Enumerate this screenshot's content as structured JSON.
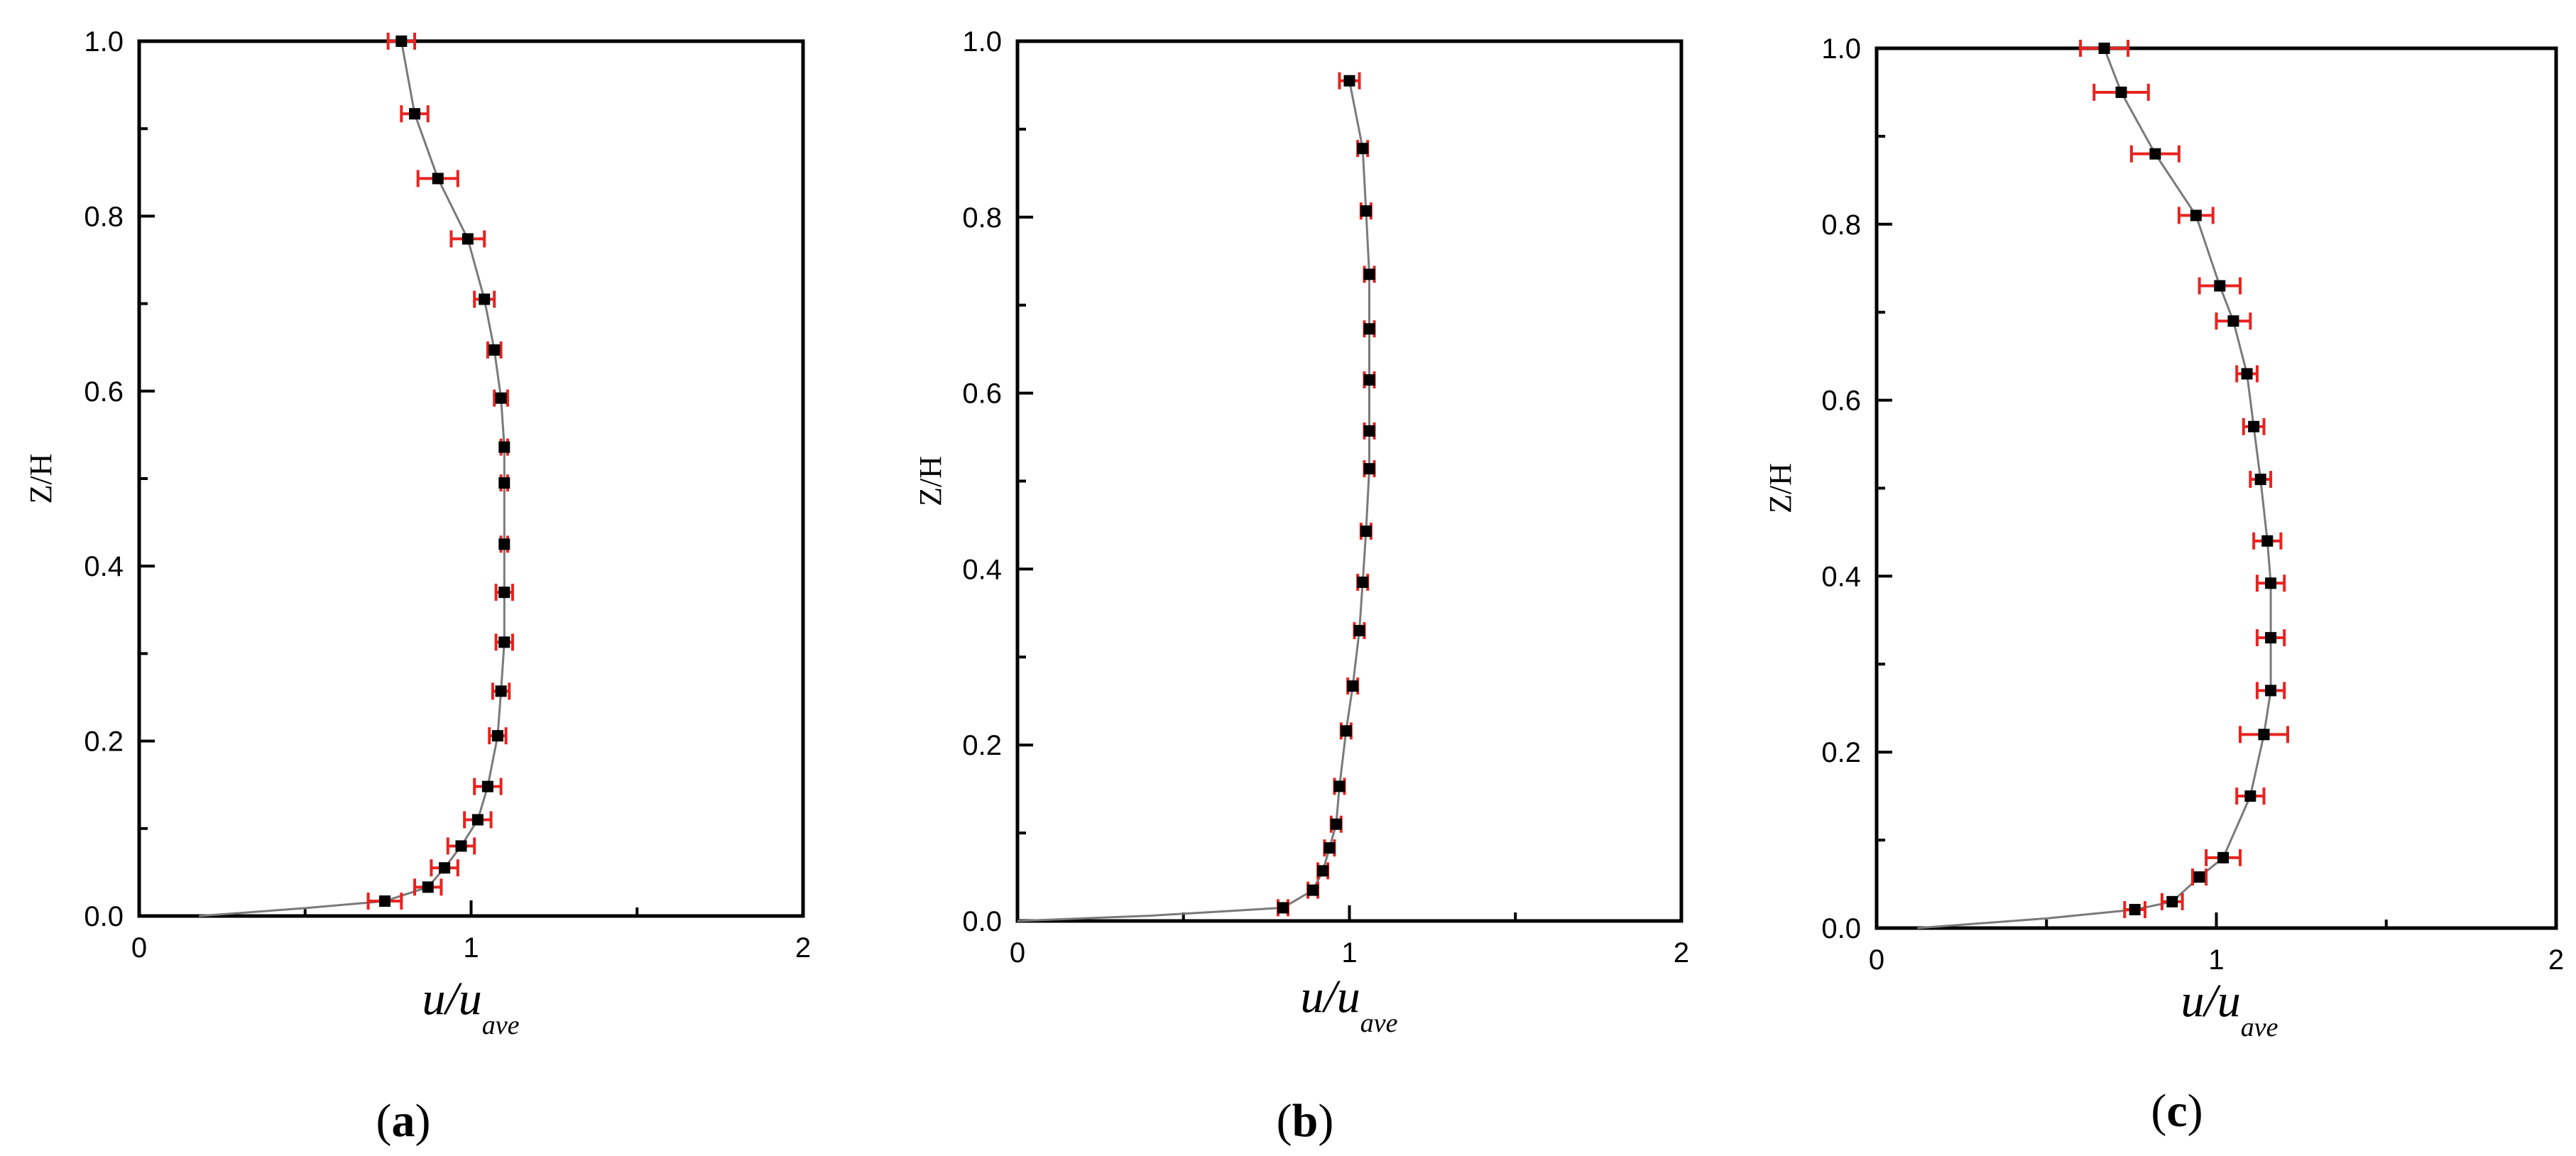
{
  "colors": {
    "line": "#7a7a7a",
    "marker": "#000000",
    "error_bar": "#e8231f",
    "axes": "#000000"
  },
  "chart_data": [
    {
      "type": "line",
      "panel_label": {
        "open": "(",
        "letter": "a",
        "close": ")"
      },
      "xlabel": {
        "main": "u/u",
        "sub": "ave"
      },
      "ylabel": "Z/H",
      "xlim": [
        0,
        2
      ],
      "ylim": [
        0,
        1
      ],
      "x_ticks": [
        "0",
        "1",
        "2"
      ],
      "y_ticks": [
        "0.0",
        "0.2",
        "0.4",
        "0.6",
        "0.8",
        "1.0"
      ],
      "grid": false,
      "line_points": [
        [
          0.18,
          0.0
        ],
        [
          0.5,
          0.009
        ],
        [
          0.74,
          0.017
        ],
        [
          0.87,
          0.033
        ],
        [
          0.92,
          0.055
        ],
        [
          0.97,
          0.08
        ],
        [
          1.02,
          0.11
        ],
        [
          1.05,
          0.148
        ],
        [
          1.08,
          0.206
        ],
        [
          1.09,
          0.257
        ],
        [
          1.1,
          0.313
        ],
        [
          1.1,
          0.37
        ],
        [
          1.1,
          0.425
        ],
        [
          1.1,
          0.495
        ],
        [
          1.1,
          0.536
        ],
        [
          1.09,
          0.592
        ],
        [
          1.07,
          0.647
        ],
        [
          1.04,
          0.705
        ],
        [
          0.99,
          0.774
        ],
        [
          0.9,
          0.843
        ],
        [
          0.83,
          0.917
        ],
        [
          0.79,
          1.0
        ]
      ],
      "points": [
        {
          "x": 0.74,
          "y": 0.017,
          "err": 0.05
        },
        {
          "x": 0.87,
          "y": 0.033,
          "err": 0.04
        },
        {
          "x": 0.92,
          "y": 0.055,
          "err": 0.04
        },
        {
          "x": 0.97,
          "y": 0.08,
          "err": 0.04
        },
        {
          "x": 1.02,
          "y": 0.11,
          "err": 0.04
        },
        {
          "x": 1.05,
          "y": 0.148,
          "err": 0.04
        },
        {
          "x": 1.08,
          "y": 0.206,
          "err": 0.025
        },
        {
          "x": 1.09,
          "y": 0.257,
          "err": 0.025
        },
        {
          "x": 1.1,
          "y": 0.313,
          "err": 0.025
        },
        {
          "x": 1.1,
          "y": 0.37,
          "err": 0.025
        },
        {
          "x": 1.1,
          "y": 0.425,
          "err": 0.01
        },
        {
          "x": 1.1,
          "y": 0.495,
          "err": 0.01
        },
        {
          "x": 1.1,
          "y": 0.536,
          "err": 0.01
        },
        {
          "x": 1.09,
          "y": 0.592,
          "err": 0.02
        },
        {
          "x": 1.07,
          "y": 0.647,
          "err": 0.02
        },
        {
          "x": 1.04,
          "y": 0.705,
          "err": 0.03
        },
        {
          "x": 0.99,
          "y": 0.774,
          "err": 0.05
        },
        {
          "x": 0.9,
          "y": 0.843,
          "err": 0.06
        },
        {
          "x": 0.83,
          "y": 0.917,
          "err": 0.04
        },
        {
          "x": 0.79,
          "y": 1.0,
          "err": 0.04
        }
      ]
    },
    {
      "type": "line",
      "panel_label": {
        "open": "(",
        "letter": "b",
        "close": ")"
      },
      "xlabel": {
        "main": "u/u",
        "sub": "ave"
      },
      "ylabel": "Z/H",
      "xlim": [
        0,
        2
      ],
      "ylim": [
        0,
        1
      ],
      "x_ticks": [
        "0",
        "1",
        "2"
      ],
      "y_ticks": [
        "0.0",
        "0.2",
        "0.4",
        "0.6",
        "0.8",
        "1.0"
      ],
      "grid": false,
      "line_points": [
        [
          0.0,
          0.0
        ],
        [
          0.4,
          0.006
        ],
        [
          0.8,
          0.015
        ],
        [
          0.89,
          0.035
        ],
        [
          0.92,
          0.057
        ],
        [
          0.94,
          0.083
        ],
        [
          0.96,
          0.11
        ],
        [
          0.97,
          0.153
        ],
        [
          0.99,
          0.216
        ],
        [
          1.01,
          0.267
        ],
        [
          1.03,
          0.33
        ],
        [
          1.04,
          0.385
        ],
        [
          1.05,
          0.443
        ],
        [
          1.06,
          0.514
        ],
        [
          1.06,
          0.557
        ],
        [
          1.06,
          0.615
        ],
        [
          1.06,
          0.673
        ],
        [
          1.06,
          0.735
        ],
        [
          1.05,
          0.807
        ],
        [
          1.04,
          0.878
        ],
        [
          1.0,
          0.955
        ]
      ],
      "points": [
        {
          "x": 0.8,
          "y": 0.015,
          "err": 0.015
        },
        {
          "x": 0.89,
          "y": 0.035,
          "err": 0.015
        },
        {
          "x": 0.92,
          "y": 0.057,
          "err": 0.015
        },
        {
          "x": 0.94,
          "y": 0.083,
          "err": 0.015
        },
        {
          "x": 0.96,
          "y": 0.11,
          "err": 0.015
        },
        {
          "x": 0.97,
          "y": 0.153,
          "err": 0.015
        },
        {
          "x": 0.99,
          "y": 0.216,
          "err": 0.015
        },
        {
          "x": 1.01,
          "y": 0.267,
          "err": 0.015
        },
        {
          "x": 1.03,
          "y": 0.33,
          "err": 0.015
        },
        {
          "x": 1.04,
          "y": 0.385,
          "err": 0.015
        },
        {
          "x": 1.05,
          "y": 0.443,
          "err": 0.015
        },
        {
          "x": 1.06,
          "y": 0.514,
          "err": 0.015
        },
        {
          "x": 1.06,
          "y": 0.557,
          "err": 0.015
        },
        {
          "x": 1.06,
          "y": 0.615,
          "err": 0.015
        },
        {
          "x": 1.06,
          "y": 0.673,
          "err": 0.015
        },
        {
          "x": 1.06,
          "y": 0.735,
          "err": 0.015
        },
        {
          "x": 1.05,
          "y": 0.807,
          "err": 0.015
        },
        {
          "x": 1.04,
          "y": 0.878,
          "err": 0.015
        },
        {
          "x": 1.0,
          "y": 0.955,
          "err": 0.03
        }
      ]
    },
    {
      "type": "line",
      "panel_label": {
        "open": "(",
        "letter": "c",
        "close": ")"
      },
      "xlabel": {
        "main": "u/u",
        "sub": "ave"
      },
      "ylabel": "Z/H",
      "xlim": [
        0,
        2
      ],
      "ylim": [
        0,
        1
      ],
      "x_ticks": [
        "0",
        "1",
        "2"
      ],
      "y_ticks": [
        "0.0",
        "0.2",
        "0.4",
        "0.6",
        "0.8",
        "1.0"
      ],
      "grid": false,
      "line_points": [
        [
          0.12,
          0.0
        ],
        [
          0.5,
          0.011
        ],
        [
          0.76,
          0.021
        ],
        [
          0.87,
          0.03
        ],
        [
          0.95,
          0.058
        ],
        [
          1.02,
          0.08
        ],
        [
          1.1,
          0.15
        ],
        [
          1.14,
          0.22
        ],
        [
          1.16,
          0.27
        ],
        [
          1.16,
          0.33
        ],
        [
          1.16,
          0.392
        ],
        [
          1.15,
          0.44
        ],
        [
          1.13,
          0.51
        ],
        [
          1.11,
          0.57
        ],
        [
          1.09,
          0.63
        ],
        [
          1.05,
          0.69
        ],
        [
          1.01,
          0.73
        ],
        [
          0.94,
          0.81
        ],
        [
          0.82,
          0.88
        ],
        [
          0.72,
          0.95
        ],
        [
          0.67,
          1.0
        ]
      ],
      "points": [
        {
          "x": 0.76,
          "y": 0.021,
          "err": 0.03
        },
        {
          "x": 0.87,
          "y": 0.03,
          "err": 0.03
        },
        {
          "x": 0.95,
          "y": 0.058,
          "err": 0.02
        },
        {
          "x": 1.02,
          "y": 0.08,
          "err": 0.05
        },
        {
          "x": 1.1,
          "y": 0.15,
          "err": 0.04
        },
        {
          "x": 1.14,
          "y": 0.22,
          "err": 0.07
        },
        {
          "x": 1.16,
          "y": 0.27,
          "err": 0.04
        },
        {
          "x": 1.16,
          "y": 0.33,
          "err": 0.04
        },
        {
          "x": 1.16,
          "y": 0.392,
          "err": 0.04
        },
        {
          "x": 1.15,
          "y": 0.44,
          "err": 0.04
        },
        {
          "x": 1.13,
          "y": 0.51,
          "err": 0.03
        },
        {
          "x": 1.11,
          "y": 0.57,
          "err": 0.03
        },
        {
          "x": 1.09,
          "y": 0.63,
          "err": 0.03
        },
        {
          "x": 1.05,
          "y": 0.69,
          "err": 0.05
        },
        {
          "x": 1.01,
          "y": 0.73,
          "err": 0.06
        },
        {
          "x": 0.94,
          "y": 0.81,
          "err": 0.05
        },
        {
          "x": 0.82,
          "y": 0.88,
          "err": 0.07
        },
        {
          "x": 0.72,
          "y": 0.95,
          "err": 0.08
        },
        {
          "x": 0.67,
          "y": 1.0,
          "err": 0.07
        }
      ]
    }
  ]
}
